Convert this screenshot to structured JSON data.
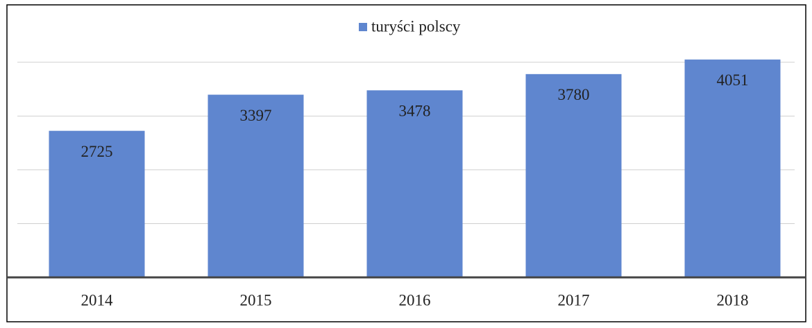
{
  "chart_data": {
    "type": "bar",
    "categories": [
      "2014",
      "2015",
      "2016",
      "2017",
      "2018"
    ],
    "series": [
      {
        "name": "turyści polscy",
        "color": "#5f86cf",
        "values": [
          2725,
          3397,
          3478,
          3780,
          4051
        ]
      }
    ],
    "ylim": [
      0,
      4500
    ],
    "yticks": [
      0,
      1000,
      2000,
      3000,
      4000
    ],
    "grid": true,
    "legend": "top"
  }
}
